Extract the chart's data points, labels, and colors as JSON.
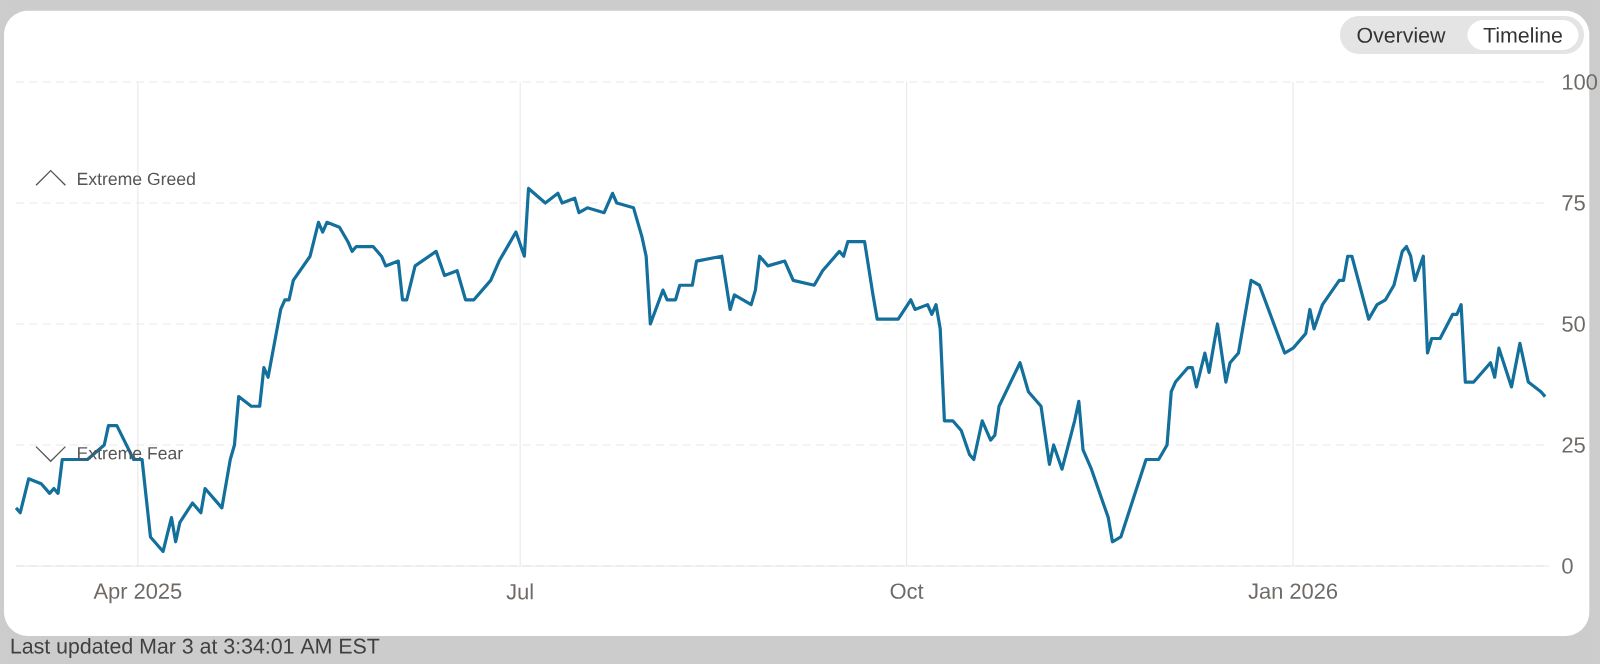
{
  "chart_data": {
    "type": "line",
    "x": [
      "2025-03-03",
      "2025-03-04",
      "2025-03-06",
      "2025-03-09",
      "2025-03-11",
      "2025-03-12",
      "2025-03-13",
      "2025-03-14",
      "2025-03-17",
      "2025-03-20",
      "2025-03-24",
      "2025-03-25",
      "2025-03-27",
      "2025-03-31",
      "2025-04-02",
      "2025-04-04",
      "2025-04-07",
      "2025-04-09",
      "2025-04-10",
      "2025-04-11",
      "2025-04-14",
      "2025-04-16",
      "2025-04-17",
      "2025-04-21",
      "2025-04-23",
      "2025-04-24",
      "2025-04-25",
      "2025-04-28",
      "2025-04-30",
      "2025-05-01",
      "2025-05-02",
      "2025-05-05",
      "2025-05-06",
      "2025-05-07",
      "2025-05-08",
      "2025-05-12",
      "2025-05-14",
      "2025-05-15",
      "2025-05-16",
      "2025-05-19",
      "2025-05-21",
      "2025-05-22",
      "2025-05-23",
      "2025-05-27",
      "2025-05-29",
      "2025-05-30",
      "2025-06-02",
      "2025-06-03",
      "2025-06-04",
      "2025-06-06",
      "2025-06-11",
      "2025-06-13",
      "2025-06-16",
      "2025-06-18",
      "2025-06-20",
      "2025-06-24",
      "2025-06-26",
      "2025-06-30",
      "2025-07-02",
      "2025-07-03",
      "2025-07-07",
      "2025-07-10",
      "2025-07-11",
      "2025-07-14",
      "2025-07-15",
      "2025-07-17",
      "2025-07-21",
      "2025-07-23",
      "2025-07-24",
      "2025-07-28",
      "2025-07-30",
      "2025-07-31",
      "2025-08-01",
      "2025-08-04",
      "2025-08-05",
      "2025-08-07",
      "2025-08-08",
      "2025-08-11",
      "2025-08-12",
      "2025-08-18",
      "2025-08-20",
      "2025-08-21",
      "2025-08-25",
      "2025-08-26",
      "2025-08-27",
      "2025-08-29",
      "2025-09-02",
      "2025-09-03",
      "2025-09-04",
      "2025-09-09",
      "2025-09-11",
      "2025-09-15",
      "2025-09-16",
      "2025-09-17",
      "2025-09-21",
      "2025-09-23",
      "2025-09-24",
      "2025-09-29",
      "2025-10-02",
      "2025-10-03",
      "2025-10-06",
      "2025-10-07",
      "2025-10-08",
      "2025-10-09",
      "2025-10-10",
      "2025-10-12",
      "2025-10-14",
      "2025-10-16",
      "2025-10-17",
      "2025-10-19",
      "2025-10-21",
      "2025-10-22",
      "2025-10-23",
      "2025-10-28",
      "2025-10-30",
      "2025-10-31",
      "2025-11-02",
      "2025-11-04",
      "2025-11-05",
      "2025-11-07",
      "2025-11-10",
      "2025-11-11",
      "2025-11-12",
      "2025-11-14",
      "2025-11-18",
      "2025-11-19",
      "2025-11-21",
      "2025-11-24",
      "2025-11-27",
      "2025-11-30",
      "2025-12-02",
      "2025-12-03",
      "2025-12-04",
      "2025-12-07",
      "2025-12-08",
      "2025-12-09",
      "2025-12-11",
      "2025-12-12",
      "2025-12-14",
      "2025-12-16",
      "2025-12-17",
      "2025-12-19",
      "2025-12-22",
      "2025-12-24",
      "2025-12-30",
      "2026-01-01",
      "2026-01-04",
      "2026-01-05",
      "2026-01-06",
      "2026-01-08",
      "2026-01-12",
      "2026-01-13",
      "2026-01-14",
      "2026-01-15",
      "2026-01-19",
      "2026-01-21",
      "2026-01-23",
      "2026-01-25",
      "2026-01-27",
      "2026-01-28",
      "2026-01-29",
      "2026-01-30",
      "2026-02-01",
      "2026-02-02",
      "2026-02-03",
      "2026-02-05",
      "2026-02-08",
      "2026-02-09",
      "2026-02-10",
      "2026-02-11",
      "2026-02-13",
      "2026-02-17",
      "2026-02-18",
      "2026-02-19",
      "2026-02-22",
      "2026-02-24",
      "2026-02-26",
      "2026-03-01",
      "2026-03-02"
    ],
    "series": [
      {
        "color": "#136f9b",
        "values": [
          12,
          11,
          18,
          17,
          15,
          16,
          15,
          22,
          22,
          22,
          25,
          29,
          29,
          22,
          22,
          6,
          3,
          10,
          5,
          9,
          13,
          11,
          16,
          12,
          22,
          25,
          35,
          33,
          33,
          41,
          39,
          53,
          55,
          55,
          59,
          64,
          71,
          69,
          71,
          70,
          67,
          65,
          66,
          66,
          64,
          62,
          63,
          55,
          55,
          62,
          65,
          60,
          61,
          55,
          55,
          59,
          63,
          69,
          64,
          78,
          75,
          77,
          75,
          76,
          73,
          74,
          73,
          77,
          75,
          74,
          68,
          64,
          50,
          57,
          55,
          55,
          58,
          58,
          63,
          64,
          53,
          56,
          54,
          57,
          64,
          62,
          63,
          61,
          59,
          58,
          61,
          65,
          64,
          67,
          67,
          56,
          51,
          51,
          55,
          53,
          54,
          52,
          54,
          49,
          30,
          30,
          28,
          23,
          22,
          30,
          26,
          27,
          33,
          42,
          36,
          35,
          33,
          21,
          25,
          20,
          30,
          34,
          24,
          20,
          10,
          5,
          6,
          14,
          22,
          22,
          25,
          36,
          38,
          41,
          41,
          37,
          44,
          40,
          50,
          38,
          42,
          44,
          59,
          58,
          44,
          45,
          48,
          53,
          49,
          54,
          59,
          59,
          64,
          64,
          51,
          54,
          55,
          58,
          65,
          66,
          64,
          59,
          64,
          44,
          47,
          47,
          52,
          52,
          54,
          38,
          38,
          42,
          39,
          45,
          37,
          46,
          38,
          36,
          35
        ]
      }
    ],
    "xlim": [
      "2025-03-03",
      "2026-03-03"
    ],
    "xticks": [
      {
        "value": "2025-04-01",
        "label": "Apr 2025"
      },
      {
        "value": "2025-07-01",
        "label": "Jul"
      },
      {
        "value": "2025-10-01",
        "label": "Oct"
      },
      {
        "value": "2026-01-01",
        "label": "Jan 2026"
      }
    ],
    "ylim": [
      0,
      100
    ],
    "yticks": [
      0,
      25,
      50,
      75,
      100
    ],
    "grid": true,
    "marker": "none",
    "line_style": "solid",
    "annotations": [
      "Extreme Greed",
      "Extreme Fear",
      "Overview",
      "Timeline",
      "Last updated Mar 3 at 3:34:01 AM EST"
    ]
  }
}
